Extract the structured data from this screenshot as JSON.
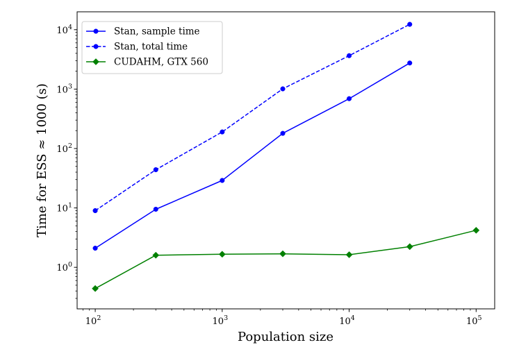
{
  "chart_data": {
    "type": "line",
    "xscale": "log",
    "yscale": "log",
    "xlabel": "Population size",
    "ylabel": "Time for ESS ≈ 1000 (s)",
    "xlim": [
      72,
      140000
    ],
    "ylim": [
      0.2,
      20000
    ],
    "legend_position": "top-left",
    "x_ticks": [
      {
        "value": 100,
        "base": "10",
        "exp": "2"
      },
      {
        "value": 1000,
        "base": "10",
        "exp": "3"
      },
      {
        "value": 10000,
        "base": "10",
        "exp": "4"
      },
      {
        "value": 100000,
        "base": "10",
        "exp": "5"
      }
    ],
    "y_ticks": [
      {
        "value": 1,
        "base": "10",
        "exp": "0"
      },
      {
        "value": 10,
        "base": "10",
        "exp": "1"
      },
      {
        "value": 100,
        "base": "10",
        "exp": "2"
      },
      {
        "value": 1000,
        "base": "10",
        "exp": "3"
      },
      {
        "value": 10000,
        "base": "10",
        "exp": "4"
      }
    ],
    "series": [
      {
        "name": "Stan, sample time",
        "color": "#0000ff",
        "style": "solid",
        "marker": "circle",
        "x": [
          100,
          300,
          1000,
          3000,
          10000,
          30000
        ],
        "y": [
          2.1,
          9.5,
          29,
          180,
          690,
          2750
        ]
      },
      {
        "name": "Stan, total time",
        "color": "#0000ff",
        "style": "dashed",
        "marker": "circle",
        "x": [
          100,
          300,
          1000,
          3000,
          10000,
          30000
        ],
        "y": [
          9,
          44,
          190,
          1010,
          3650,
          12300
        ]
      },
      {
        "name": "CUDAHM, GTX 560",
        "color": "#008000",
        "style": "solid",
        "marker": "diamond",
        "x": [
          100,
          300,
          1000,
          3000,
          10000,
          30000,
          100000
        ],
        "y": [
          0.44,
          1.6,
          1.66,
          1.69,
          1.63,
          2.23,
          4.2
        ]
      }
    ]
  }
}
